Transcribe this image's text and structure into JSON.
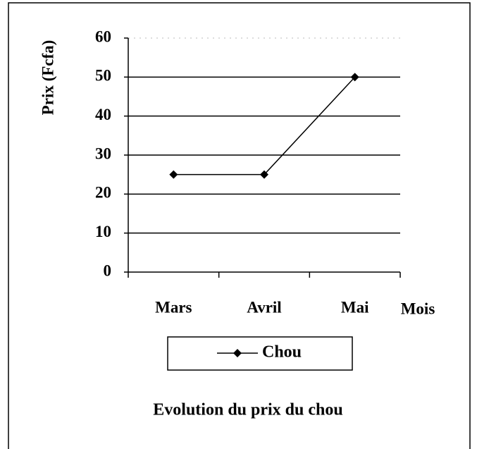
{
  "chart_data": {
    "type": "line",
    "title": "Evolution du prix du chou",
    "x_label": "Mois",
    "y_label": "Prix (Fcfa)",
    "categories": [
      "Mars",
      "Avril",
      "Mai"
    ],
    "series": [
      {
        "name": "Chou",
        "color": "#000000",
        "values": [
          25,
          25,
          50
        ]
      }
    ],
    "ylim": [
      0,
      60
    ],
    "yticks": [
      0,
      10,
      20,
      30,
      40,
      50,
      60
    ],
    "grid": true,
    "legend": "bottom"
  }
}
